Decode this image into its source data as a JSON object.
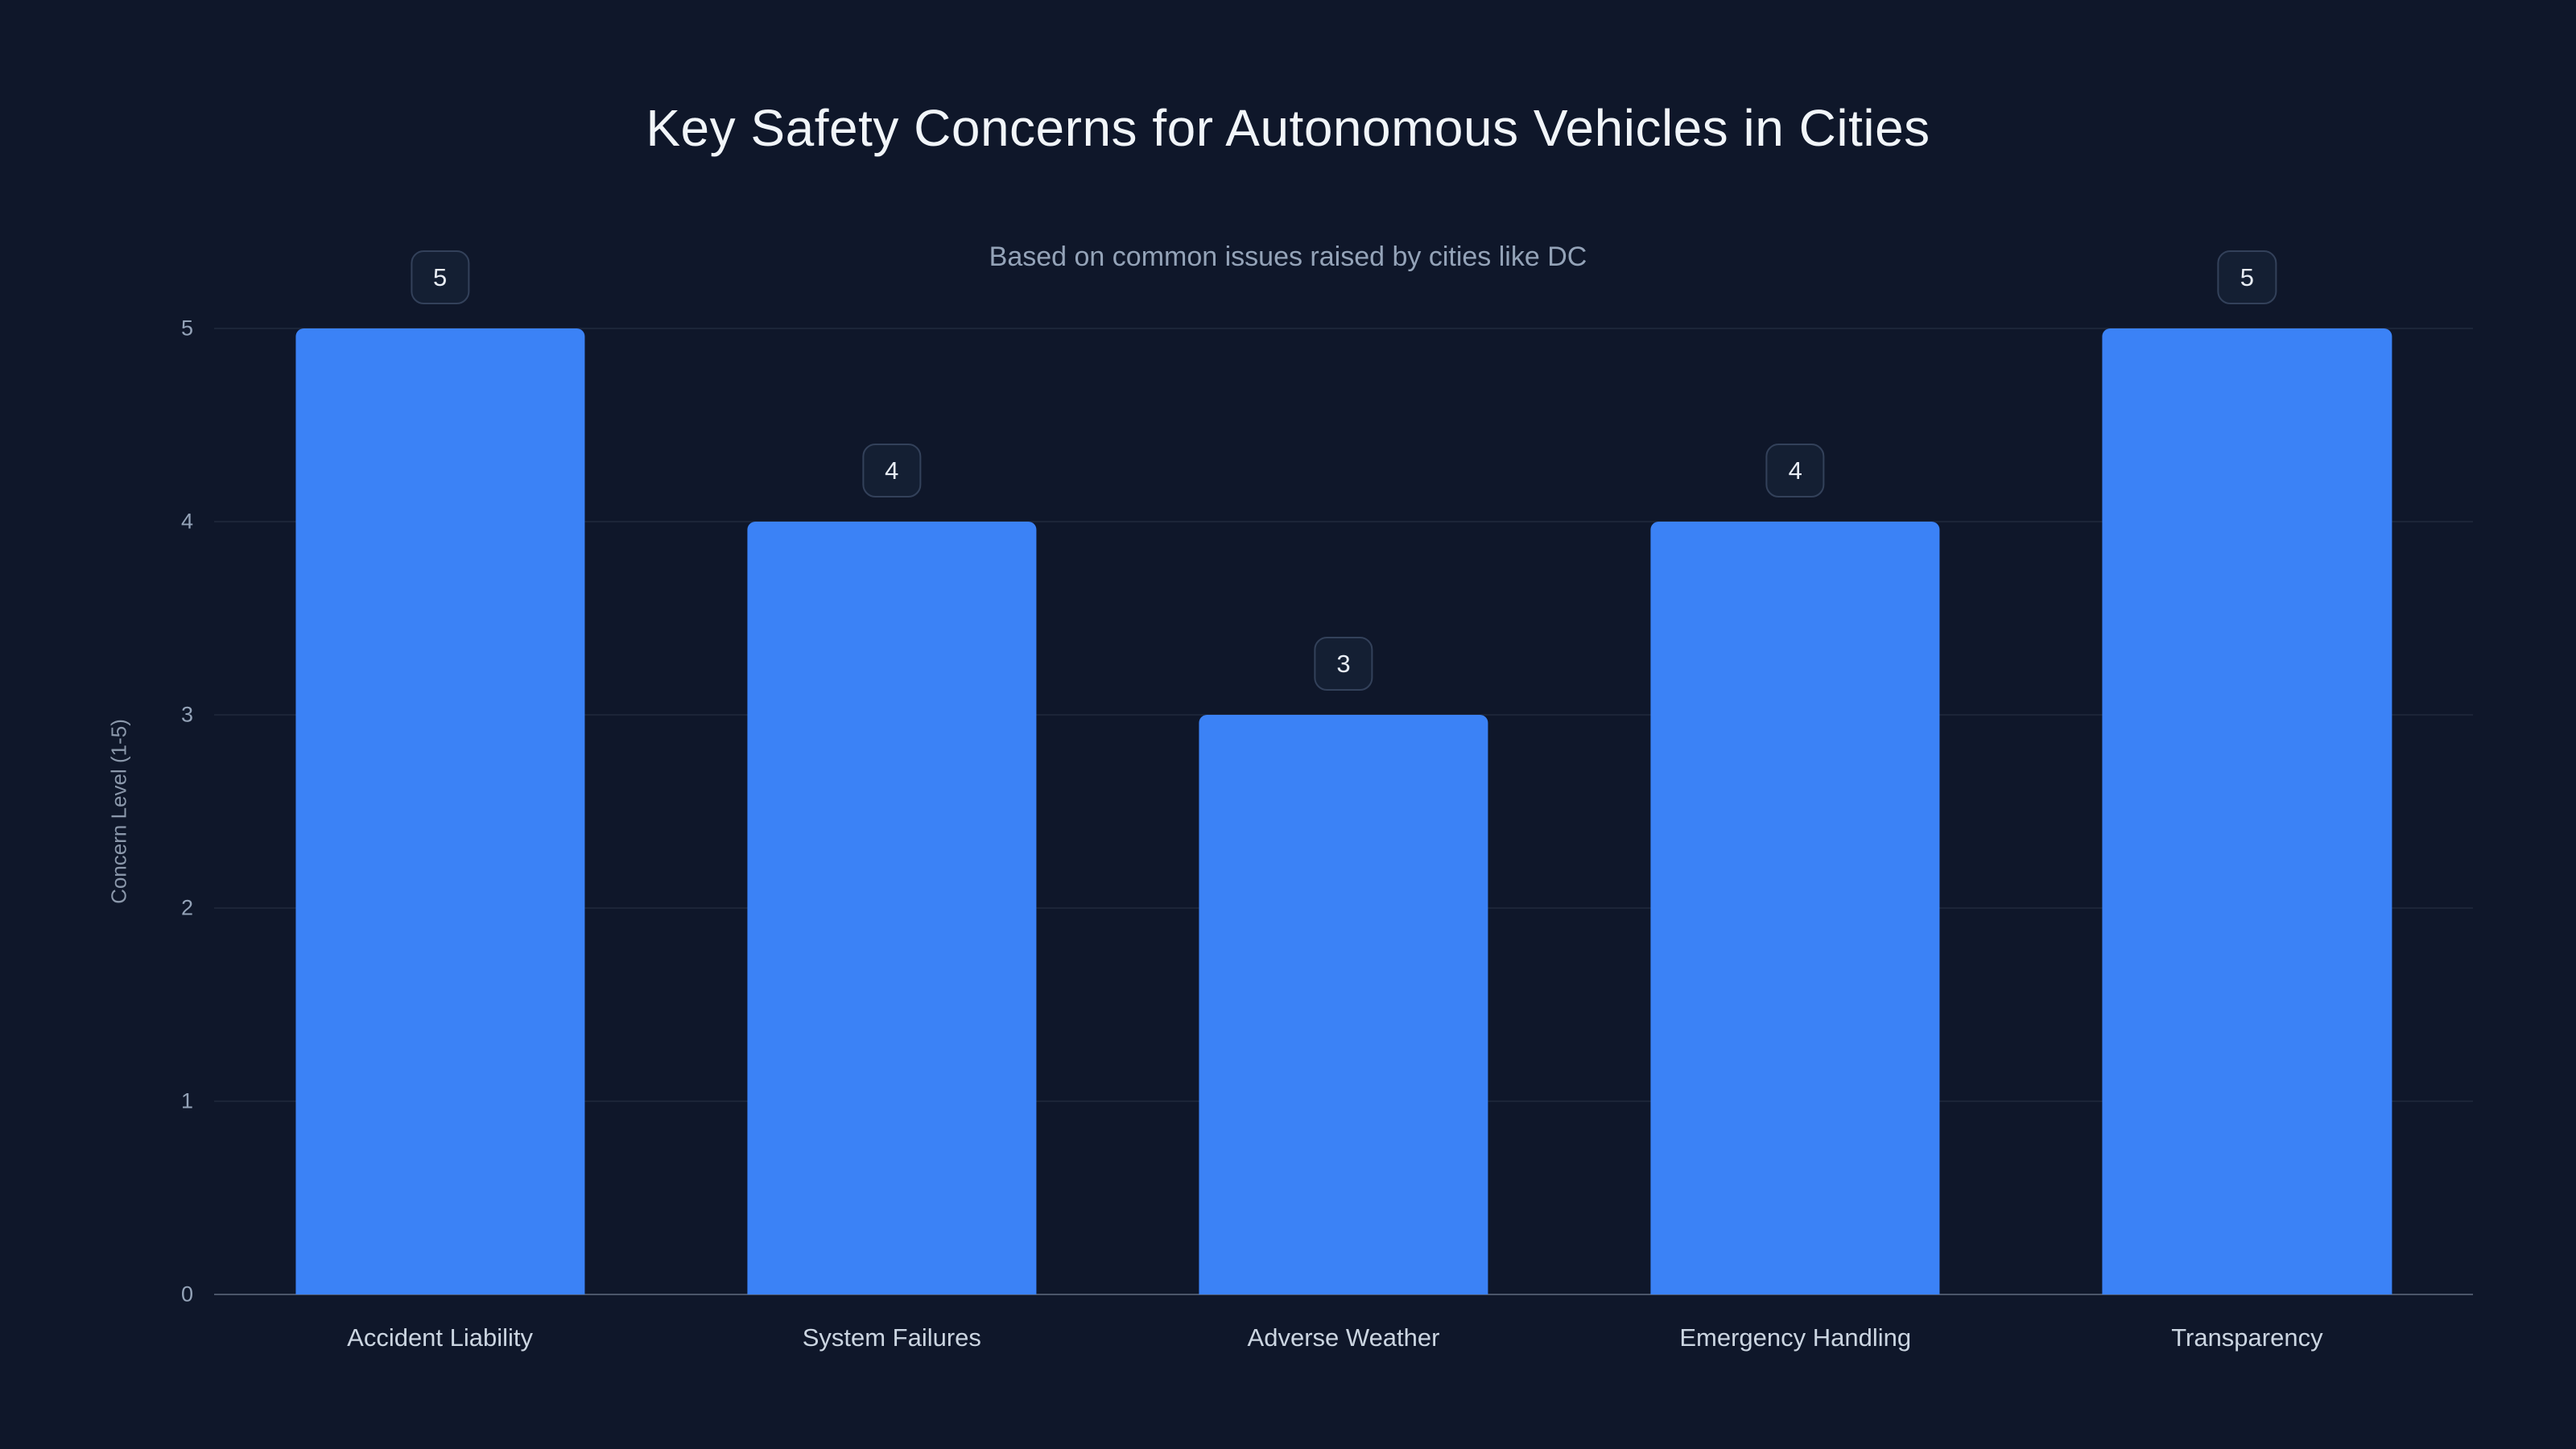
{
  "chart_data": {
    "type": "bar",
    "title": "Key Safety Concerns for Autonomous Vehicles in Cities",
    "subtitle": "Based on common issues raised by cities like DC",
    "ylabel": "Concern Level (1-5)",
    "xlabel": "",
    "categories": [
      "Accident Liability",
      "System Failures",
      "Adverse Weather",
      "Emergency Handling",
      "Transparency"
    ],
    "values": [
      5,
      4,
      3,
      4,
      5
    ],
    "data_labels": [
      5,
      4,
      3,
      4,
      5
    ],
    "ylim": [
      0,
      5
    ],
    "yticks": [
      0,
      1,
      2,
      3,
      4,
      5
    ],
    "grid": true,
    "legend": false,
    "colors": {
      "background": "#0f172a",
      "bar": "#3b82f6",
      "title_text": "#f1f5f9",
      "subtitle_text": "#94a3b8",
      "tick_text": "#94a3b8",
      "category_text": "#cbd5e1",
      "gridline": "rgba(148,163,184,0.10)"
    }
  }
}
